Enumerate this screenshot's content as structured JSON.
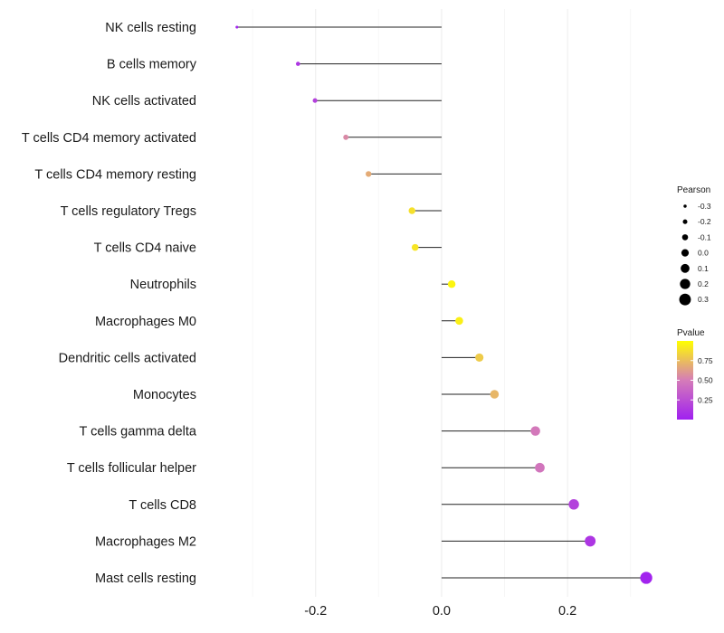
{
  "chart_data": {
    "type": "lollipop",
    "title": "",
    "xlabel": "",
    "ylabel": "",
    "xlim": [
      -0.375,
      0.345
    ],
    "x_ticks": [
      -0.2,
      0.0,
      0.2
    ],
    "x_tick_labels": [
      "-0.2",
      "0.0",
      "0.2"
    ],
    "grid": true,
    "categories": [
      "NK cells resting",
      "B cells memory",
      "NK cells activated",
      "T cells CD4 memory activated",
      "T cells CD4 memory resting",
      "T cells regulatory  Tregs ",
      "T cells CD4 naive",
      "Neutrophils",
      "Macrophages M0",
      "Dendritic cells activated",
      "Monocytes",
      "T cells gamma delta",
      "T cells follicular helper",
      "T cells CD8",
      "Macrophages M2",
      "Mast cells resting"
    ],
    "pearson": [
      -0.325,
      -0.228,
      -0.201,
      -0.152,
      -0.116,
      -0.047,
      -0.042,
      0.016,
      0.028,
      0.06,
      0.084,
      0.149,
      0.156,
      0.21,
      0.236,
      0.325
    ],
    "pvalue": [
      0.02,
      0.12,
      0.18,
      0.55,
      0.68,
      0.88,
      0.9,
      0.96,
      0.94,
      0.8,
      0.72,
      0.48,
      0.46,
      0.18,
      0.12,
      0.02
    ],
    "size_legend": {
      "title": "Pearson",
      "labels": [
        "-0.3",
        "-0.2",
        "-0.1",
        "0.0",
        "0.1",
        "0.2",
        "0.3"
      ],
      "values": [
        -0.3,
        -0.2,
        -0.1,
        0.0,
        0.1,
        0.2,
        0.3
      ]
    },
    "color_legend": {
      "title": "Pvalue",
      "labels": [
        "0.75",
        "0.50",
        "0.25"
      ],
      "values": [
        0.75,
        0.5,
        0.25
      ],
      "range": [
        0.0,
        1.0
      ],
      "low_color": "#a020f0",
      "mid_color": "#d57cb8",
      "high_color": "#ffff00"
    }
  }
}
